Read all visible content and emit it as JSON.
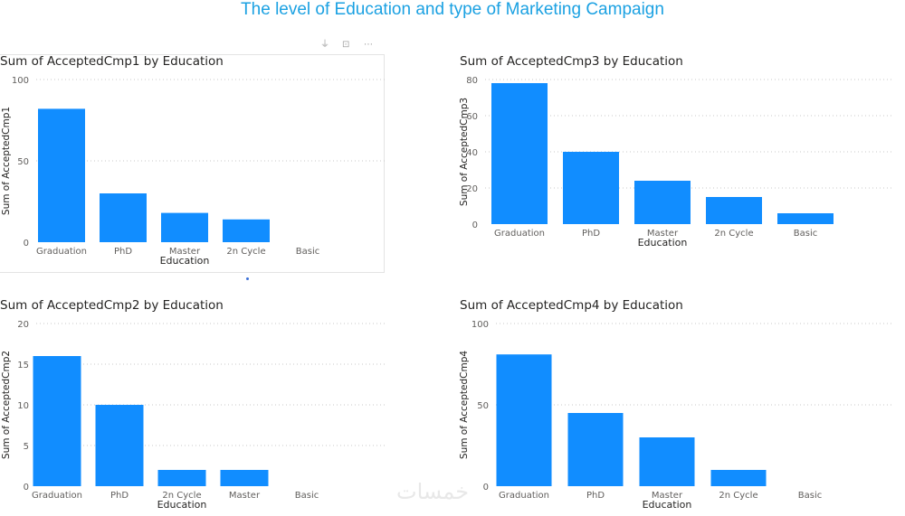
{
  "page": {
    "title": "The level of Education and type of Marketing Campaign"
  },
  "colors": {
    "bar": "#118dff",
    "title": "#1ba1e2",
    "axis_text": "#605e5c",
    "grid": "#c8c8c8"
  },
  "watermark": {
    "text": "خمسات"
  },
  "chart_data": [
    {
      "type": "bar",
      "title": "Sum of AcceptedCmp1 by Education",
      "xlabel": "Education",
      "ylabel": "Sum of AcceptedCmp1",
      "categories": [
        "Graduation",
        "PhD",
        "Master",
        "2n Cycle",
        "Basic"
      ],
      "values": [
        82,
        30,
        18,
        14,
        0
      ],
      "ylim": [
        0,
        100
      ],
      "yticks": [
        0,
        50,
        100
      ],
      "grid": true
    },
    {
      "type": "bar",
      "title": "Sum of AcceptedCmp3 by Education",
      "xlabel": "Education",
      "ylabel": "Sum of AcceptedCmp3",
      "categories": [
        "Graduation",
        "PhD",
        "Master",
        "2n Cycle",
        "Basic"
      ],
      "values": [
        78,
        40,
        24,
        15,
        6
      ],
      "ylim": [
        0,
        80
      ],
      "yticks": [
        0,
        20,
        40,
        60,
        80
      ],
      "grid": true
    },
    {
      "type": "bar",
      "title": "Sum of AcceptedCmp2 by Education",
      "xlabel": "Education",
      "ylabel": "Sum of AcceptedCmp2",
      "categories": [
        "Graduation",
        "PhD",
        "2n Cycle",
        "Master",
        "Basic"
      ],
      "values": [
        16,
        10,
        2,
        2,
        0
      ],
      "ylim": [
        0,
        20
      ],
      "yticks": [
        0,
        5,
        10,
        15,
        20
      ],
      "grid": true
    },
    {
      "type": "bar",
      "title": "Sum of AcceptedCmp4 by Education",
      "xlabel": "Education",
      "ylabel": "Sum of AcceptedCmp4",
      "categories": [
        "Graduation",
        "PhD",
        "Master",
        "2n Cycle",
        "Basic"
      ],
      "values": [
        81,
        45,
        30,
        10,
        0
      ],
      "ylim": [
        0,
        100
      ],
      "yticks": [
        0,
        50,
        100
      ],
      "grid": true
    }
  ]
}
